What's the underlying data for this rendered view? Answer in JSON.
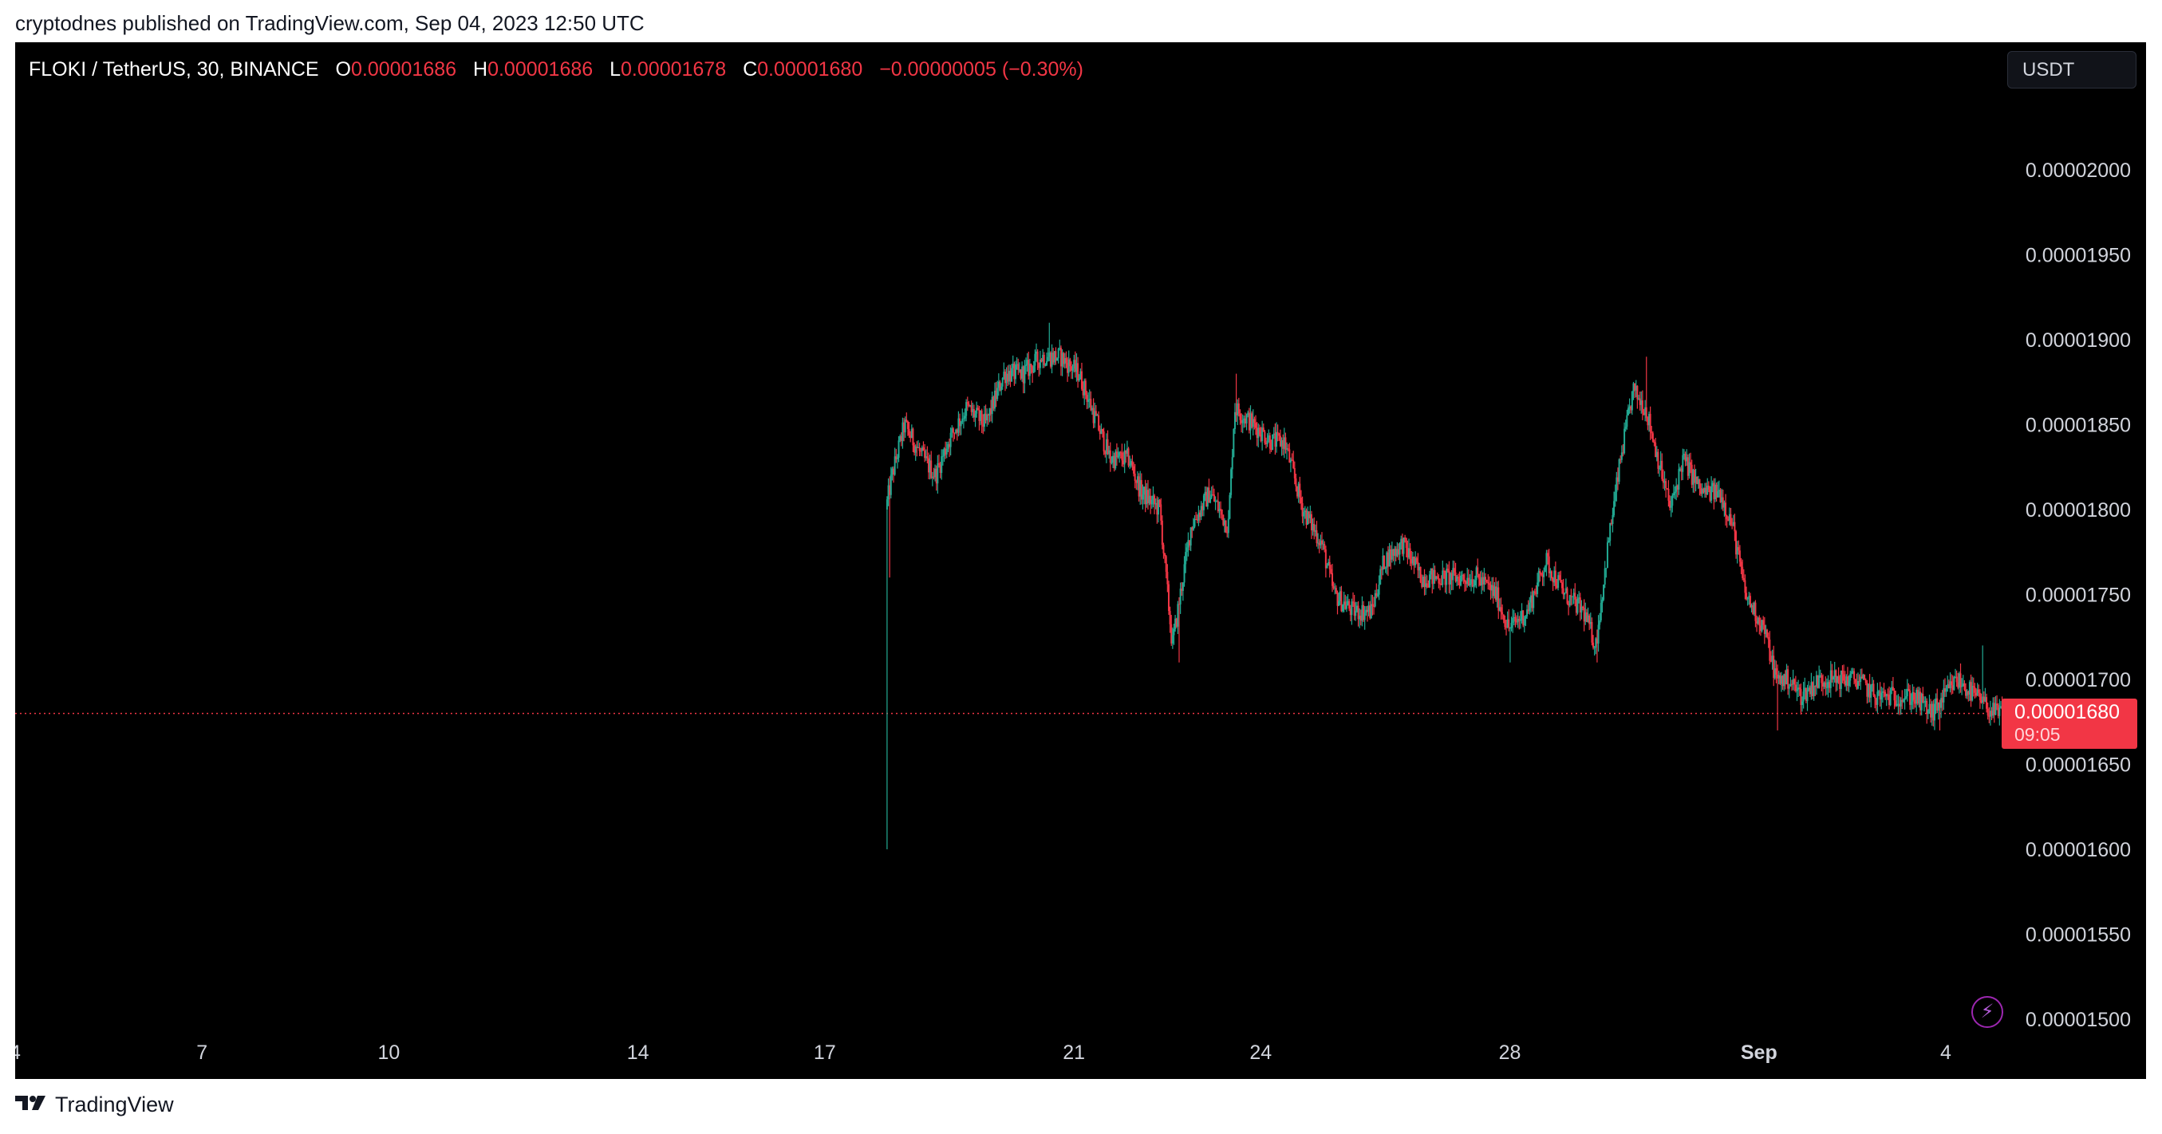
{
  "header": {
    "published": "cryptodnes published on TradingView.com, Sep 04, 2023 12:50 UTC"
  },
  "legend": {
    "symbol": "FLOKI / TetherUS, 30, BINANCE",
    "open_label": "O",
    "open": "0.00001686",
    "high_label": "H",
    "high": "0.00001686",
    "low_label": "L",
    "low": "0.00001678",
    "close_label": "C",
    "close": "0.00001680",
    "change": "−0.00000005 (−0.30%)"
  },
  "currency_button": "USDT",
  "price_tag": {
    "price": "0.00001680",
    "countdown": "09:05"
  },
  "footer": {
    "brand": "TradingView"
  },
  "colors": {
    "background": "#000000",
    "up": "#22ab94",
    "down": "#f23645",
    "axis_text": "#d1d4dc",
    "accent": "#f23645"
  },
  "icons": {
    "lightning": "bolt-icon",
    "logo": "tradingview-logo-icon"
  },
  "chart_data": {
    "type": "candlestick",
    "title": "FLOKI / TetherUS, 30, BINANCE",
    "ylim": [
      1.475e-05,
      2.06e-05
    ],
    "y_ticks": [
      "0.00002000",
      "0.00001950",
      "0.00001900",
      "0.00001850",
      "0.00001800",
      "0.00001750",
      "0.00001700",
      "0.00001650",
      "0.00001600",
      "0.00001550",
      "0.00001500"
    ],
    "y_tick_values": [
      2e-05,
      1.95e-05,
      1.9e-05,
      1.85e-05,
      1.8e-05,
      1.75e-05,
      1.7e-05,
      1.65e-05,
      1.6e-05,
      1.55e-05,
      1.5e-05
    ],
    "x_ticks": [
      "4",
      "7",
      "10",
      "14",
      "17",
      "21",
      "24",
      "28",
      "Sep",
      "4"
    ],
    "x_tick_days": [
      4,
      7,
      10,
      14,
      17,
      21,
      24,
      28,
      32,
      35
    ],
    "xlim_days": [
      4,
      36.3
    ],
    "last_price": 1.68e-05,
    "last_price_line": "dotted",
    "series_start_day": 18.0,
    "series_end_day": 36.05,
    "first_candle_low": 1.6e-05,
    "price_path": [
      [
        18.0,
        1.8e-05
      ],
      [
        18.1,
        1.82e-05
      ],
      [
        18.3,
        1.85e-05
      ],
      [
        18.6,
        1.83e-05
      ],
      [
        18.8,
        1.82e-05
      ],
      [
        19.0,
        1.84e-05
      ],
      [
        19.3,
        1.86e-05
      ],
      [
        19.6,
        1.85e-05
      ],
      [
        19.9,
        1.88e-05
      ],
      [
        20.2,
        1.88e-05
      ],
      [
        20.5,
        1.89e-05
      ],
      [
        20.8,
        1.89e-05
      ],
      [
        21.1,
        1.88e-05
      ],
      [
        21.3,
        1.86e-05
      ],
      [
        21.6,
        1.83e-05
      ],
      [
        21.9,
        1.83e-05
      ],
      [
        22.1,
        1.81e-05
      ],
      [
        22.4,
        1.8e-05
      ],
      [
        22.6,
        1.72e-05
      ],
      [
        22.9,
        1.79e-05
      ],
      [
        23.2,
        1.81e-05
      ],
      [
        23.5,
        1.79e-05
      ],
      [
        23.6,
        1.86e-05
      ],
      [
        23.9,
        1.85e-05
      ],
      [
        24.2,
        1.84e-05
      ],
      [
        24.4,
        1.84e-05
      ],
      [
        24.7,
        1.8e-05
      ],
      [
        25.0,
        1.78e-05
      ],
      [
        25.2,
        1.75e-05
      ],
      [
        25.5,
        1.74e-05
      ],
      [
        25.8,
        1.74e-05
      ],
      [
        26.0,
        1.77e-05
      ],
      [
        26.3,
        1.78e-05
      ],
      [
        26.6,
        1.76e-05
      ],
      [
        26.9,
        1.76e-05
      ],
      [
        27.2,
        1.76e-05
      ],
      [
        27.5,
        1.76e-05
      ],
      [
        27.8,
        1.75e-05
      ],
      [
        28.0,
        1.73e-05
      ],
      [
        28.3,
        1.74e-05
      ],
      [
        28.6,
        1.77e-05
      ],
      [
        28.9,
        1.75e-05
      ],
      [
        29.2,
        1.74e-05
      ],
      [
        29.4,
        1.72e-05
      ],
      [
        29.6,
        1.78e-05
      ],
      [
        29.8,
        1.83e-05
      ],
      [
        30.0,
        1.87e-05
      ],
      [
        30.2,
        1.86e-05
      ],
      [
        30.4,
        1.83e-05
      ],
      [
        30.6,
        1.8e-05
      ],
      [
        30.8,
        1.83e-05
      ],
      [
        31.1,
        1.81e-05
      ],
      [
        31.4,
        1.81e-05
      ],
      [
        31.6,
        1.79e-05
      ],
      [
        31.8,
        1.75e-05
      ],
      [
        32.1,
        1.73e-05
      ],
      [
        32.3,
        1.7e-05
      ],
      [
        32.5,
        1.7e-05
      ],
      [
        32.7,
        1.69e-05
      ],
      [
        33.0,
        1.7e-05
      ],
      [
        33.3,
        1.7e-05
      ],
      [
        33.6,
        1.7e-05
      ],
      [
        33.9,
        1.69e-05
      ],
      [
        34.2,
        1.69e-05
      ],
      [
        34.5,
        1.69e-05
      ],
      [
        34.8,
        1.68e-05
      ],
      [
        35.0,
        1.69e-05
      ],
      [
        35.2,
        1.7e-05
      ],
      [
        35.5,
        1.69e-05
      ],
      [
        35.8,
        1.68e-05
      ],
      [
        36.05,
        1.68e-05
      ]
    ],
    "notable_wicks": [
      [
        18.05,
        1.76e-05
      ],
      [
        20.6,
        1.91e-05
      ],
      [
        22.7,
        1.71e-05
      ],
      [
        23.6,
        1.88e-05
      ],
      [
        28.0,
        1.71e-05
      ],
      [
        29.4,
        1.71e-05
      ],
      [
        30.2,
        1.89e-05
      ],
      [
        32.3,
        1.67e-05
      ],
      [
        34.9,
        1.67e-05
      ],
      [
        35.6,
        1.72e-05
      ]
    ],
    "grid": false,
    "legend_position": "top-left"
  }
}
